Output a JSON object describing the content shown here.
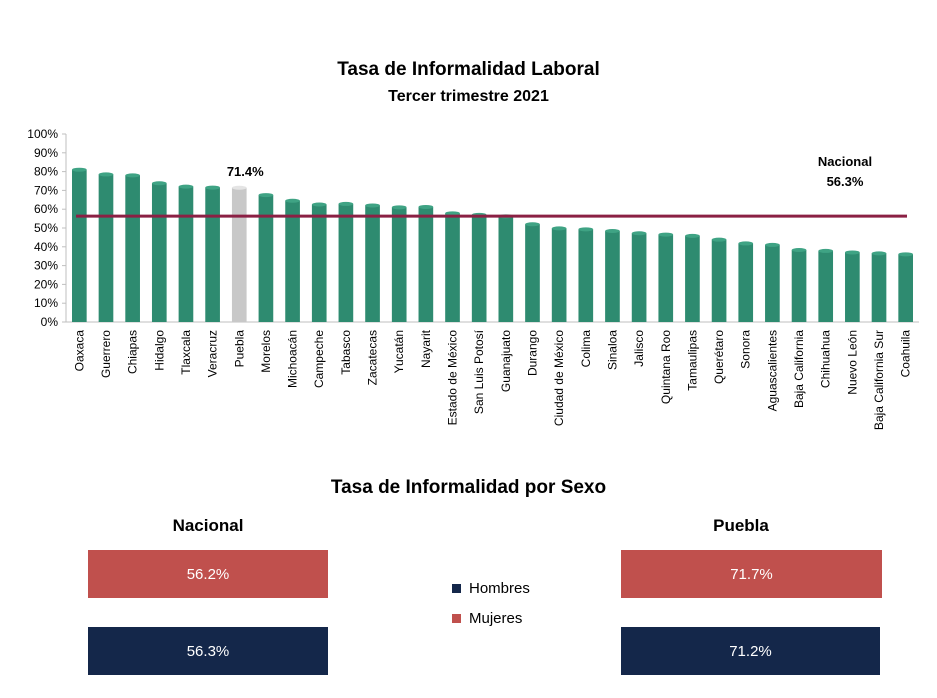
{
  "main_chart": {
    "title": "Tasa de Informalidad Laboral",
    "subtitle": "Tercer trimestre 2021",
    "highlight_label": "71.4%",
    "national_label_name": "Nacional",
    "national_label_value": "56.3%",
    "colors": {
      "bar": "#2e8b70",
      "highlight": "#c8c8c8",
      "national_line": "#8b2044",
      "axis": "#bfbfbf"
    }
  },
  "chart_data": [
    {
      "type": "bar",
      "title": "Tasa de Informalidad Laboral",
      "subtitle": "Tercer trimestre 2021",
      "ylim": [
        0,
        100
      ],
      "yticks": [
        "0%",
        "10%",
        "20%",
        "30%",
        "40%",
        "50%",
        "60%",
        "70%",
        "80%",
        "90%",
        "100%"
      ],
      "categories": [
        "Oaxaca",
        "Guerrero",
        "Chiapas",
        "Hidalgo",
        "Tlaxcala",
        "Veracruz",
        "Puebla",
        "Morelos",
        "Michoacán",
        "Campeche",
        "Tabasco",
        "Zacatecas",
        "Yucatán",
        "Nayarit",
        "Estado de México",
        "San Luis Potosí",
        "Guanajuato",
        "Durango",
        "Ciudad de México",
        "Colima",
        "Sinaloa",
        "Jalisco",
        "Quintana Roo",
        "Tamaulipas",
        "Querétaro",
        "Sonora",
        "Aguascalientes",
        "Baja California",
        "Chihuahua",
        "Nuevo León",
        "Baja California Sur",
        "Coahuila"
      ],
      "values": [
        81.0,
        78.5,
        78.0,
        73.8,
        72.0,
        71.5,
        71.4,
        67.5,
        64.5,
        62.5,
        62.8,
        62.0,
        61.0,
        61.2,
        57.8,
        57.0,
        56.2,
        52.0,
        49.8,
        49.3,
        48.4,
        47.2,
        46.5,
        45.8,
        43.8,
        41.8,
        41.0,
        38.3,
        37.8,
        37.0,
        36.5,
        36.0
      ],
      "highlight_category": "Puebla",
      "reference_line": {
        "name": "Nacional",
        "value": 56.3
      },
      "grid": false
    },
    {
      "type": "bar",
      "title": "Tasa de Informalidad por Sexo",
      "legend": [
        "Hombres",
        "Mujeres"
      ],
      "legend_position": "center",
      "series": [
        {
          "name": "Mujeres",
          "color": "#c0504d",
          "values": [
            56.2,
            71.7
          ]
        },
        {
          "name": "Hombres",
          "color": "#14274a",
          "values": [
            56.3,
            71.2
          ]
        }
      ],
      "categories": [
        "Nacional",
        "Puebla"
      ]
    }
  ],
  "sex_section": {
    "title": "Tasa de Informalidad por Sexo",
    "nacional": {
      "title": "Nacional",
      "mujeres_label": "56.2%",
      "hombres_label": "56.3%"
    },
    "puebla": {
      "title": "Puebla",
      "mujeres_label": "71.7%",
      "hombres_label": "71.2%"
    },
    "legend": {
      "hombres": "Hombres",
      "mujeres": "Mujeres"
    },
    "colors": {
      "mujeres": "#c0504d",
      "hombres": "#14274a"
    }
  }
}
